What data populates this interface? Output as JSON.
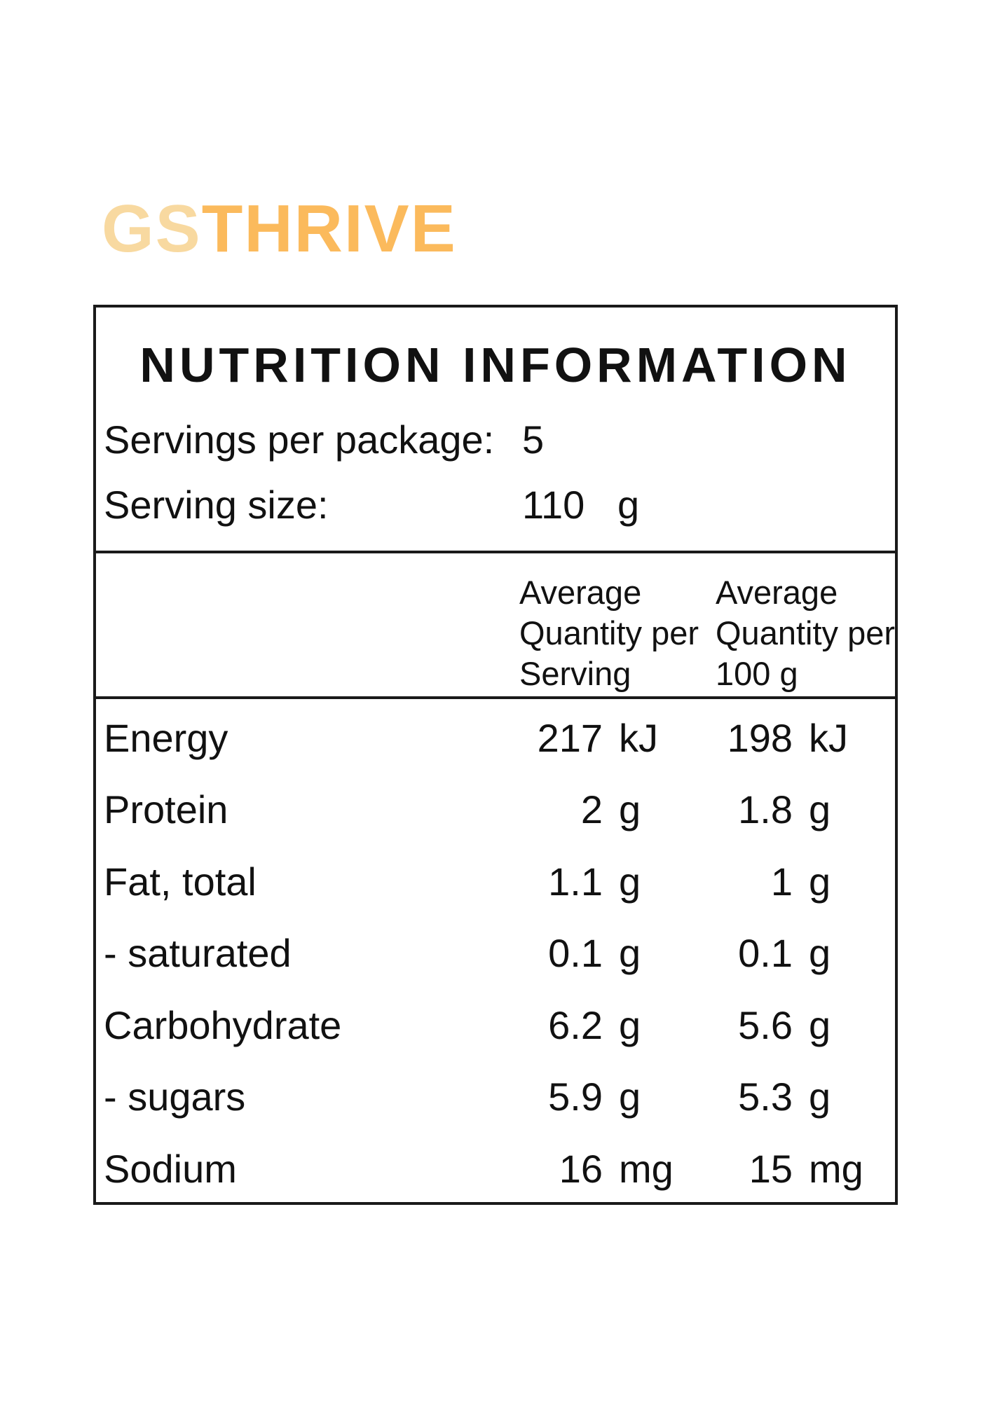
{
  "page": {
    "background": "#ffffff",
    "text_color": "#111111",
    "border_color": "#1a1a1a"
  },
  "logo": {
    "text_light": "GS",
    "text_bold": "THRIVE",
    "light_color": "#F8D9A0",
    "bold_color": "#FBBA5C"
  },
  "panel": {
    "title": "NUTRITION INFORMATION",
    "servings_per_package": {
      "label": "Servings per package:",
      "value": "5"
    },
    "serving_size": {
      "label": "Serving size:",
      "value": "110",
      "unit": "g"
    },
    "column_headers": [
      {
        "lines": [
          "Average",
          "Quantity per",
          "Serving"
        ]
      },
      {
        "lines": [
          "Average",
          "Quantity per",
          "100 g"
        ]
      }
    ],
    "rows": [
      {
        "label": "Energy",
        "serving_qty": "217",
        "serving_unit": "kJ",
        "per100_qty": "198",
        "per100_unit": "kJ"
      },
      {
        "label": "Protein",
        "serving_qty": "2",
        "serving_unit": "g",
        "per100_qty": "1.8",
        "per100_unit": "g"
      },
      {
        "label": "Fat, total",
        "serving_qty": "1.1",
        "serving_unit": "g",
        "per100_qty": "1",
        "per100_unit": "g"
      },
      {
        "label": "- saturated",
        "serving_qty": "0.1",
        "serving_unit": "g",
        "per100_qty": "0.1",
        "per100_unit": "g"
      },
      {
        "label": "Carbohydrate",
        "serving_qty": "6.2",
        "serving_unit": "g",
        "per100_qty": "5.6",
        "per100_unit": "g"
      },
      {
        "label": "- sugars",
        "serving_qty": "5.9",
        "serving_unit": "g",
        "per100_qty": "5.3",
        "per100_unit": "g"
      },
      {
        "label": "Sodium",
        "serving_qty": "16",
        "serving_unit": "mg",
        "per100_qty": "15",
        "per100_unit": "mg"
      }
    ]
  }
}
